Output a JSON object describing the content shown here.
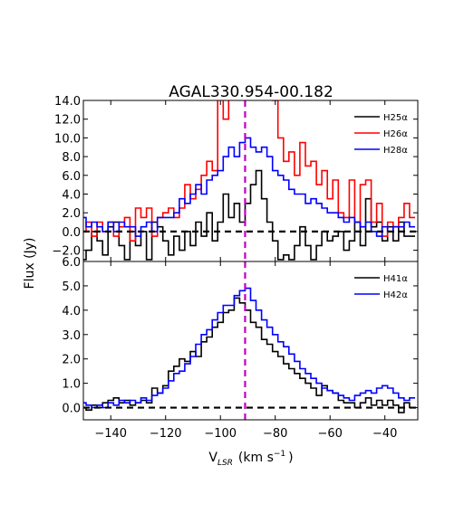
{
  "chart_data": {
    "type": "line",
    "title": "AGAL330.954-00.182",
    "xlabel_main": "V",
    "xlabel_sub": "LSR",
    "xlabel_unit": "(km s",
    "xlabel_exp": "−1",
    "xlabel_close": ")",
    "ylabel": "Flux (Jy)",
    "xlim": [
      -150,
      -28
    ],
    "x_ticks": [
      -140,
      -120,
      -100,
      -80,
      -60,
      -40
    ],
    "x_tick_labels": [
      "−140",
      "−120",
      "−100",
      "−80",
      "−60",
      "−40"
    ],
    "vline_x": -91,
    "colors": {
      "black": "#000000",
      "red": "#ff0000",
      "blue": "#0000ff",
      "vline": "#bf00bf"
    },
    "panels": [
      {
        "ylim": [
          -3.2,
          14.0
        ],
        "y_ticks": [
          -2,
          0,
          2,
          4,
          6,
          8,
          10,
          12,
          14
        ],
        "y_tick_labels": [
          "−2.0",
          "0.0",
          "2.0",
          "4.0",
          "6.0",
          "8.0",
          "10.0",
          "12.0",
          "14.0"
        ],
        "series": [
          {
            "name": "H25α",
            "color": "black",
            "x": [
              -150,
              -148,
              -146,
              -144,
              -142,
              -140,
              -138,
              -136,
              -134,
              -132,
              -130,
              -128,
              -126,
              -124,
              -122,
              -120,
              -118,
              -116,
              -114,
              -112,
              -110,
              -108,
              -106,
              -104,
              -102,
              -100,
              -98,
              -96,
              -94,
              -92,
              -90,
              -88,
              -86,
              -84,
              -82,
              -80,
              -78,
              -76,
              -74,
              -72,
              -70,
              -68,
              -66,
              -64,
              -62,
              -60,
              -58,
              -56,
              -54,
              -52,
              -50,
              -48,
              -46,
              -44,
              -42,
              -40,
              -38,
              -36,
              -34,
              -32,
              -30
            ],
            "y": [
              -3.0,
              -2.0,
              0.0,
              -1.0,
              -2.5,
              0.5,
              1.0,
              -1.5,
              -3.0,
              0.0,
              -1.5,
              0.0,
              -3.0,
              1.0,
              0.5,
              -1.0,
              -2.5,
              -0.5,
              -2.0,
              0.0,
              -1.5,
              1.0,
              -0.5,
              2.0,
              -1.0,
              1.0,
              4.0,
              1.5,
              3.0,
              1.0,
              3.0,
              5.0,
              6.5,
              3.5,
              1.0,
              -1.0,
              -3.0,
              -2.5,
              -3.0,
              -1.5,
              0.5,
              -1.5,
              -3.0,
              -1.5,
              0.0,
              -1.0,
              -0.5,
              0.0,
              -2.0,
              -1.0,
              1.0,
              -1.5,
              3.5,
              0.5,
              1.0,
              -1.0,
              0.5,
              -1.0,
              1.0,
              -0.5,
              -0.5
            ]
          },
          {
            "name": "H26α",
            "color": "red",
            "x": [
              -150,
              -148,
              -146,
              -144,
              -142,
              -140,
              -138,
              -136,
              -134,
              -132,
              -130,
              -128,
              -126,
              -124,
              -122,
              -120,
              -118,
              -116,
              -114,
              -112,
              -110,
              -108,
              -106,
              -104,
              -102,
              -100,
              -98,
              -96,
              -94,
              -92,
              -90,
              -88,
              -86,
              -84,
              -82,
              -80,
              -78,
              -76,
              -74,
              -72,
              -70,
              -68,
              -66,
              -64,
              -62,
              -60,
              -58,
              -56,
              -54,
              -52,
              -50,
              -48,
              -46,
              -44,
              -42,
              -40,
              -38,
              -36,
              -34,
              -32,
              -30
            ],
            "y": [
              0.0,
              1.0,
              -0.5,
              1.0,
              0.0,
              1.0,
              -0.5,
              0.5,
              1.5,
              -1.0,
              2.5,
              1.5,
              2.5,
              -0.5,
              1.5,
              2.0,
              2.5,
              1.5,
              2.5,
              5.0,
              3.5,
              4.5,
              6.0,
              7.5,
              6.5,
              14.5,
              12.0,
              14.5,
              14.5,
              14.5,
              14.5,
              14.5,
              14.5,
              14.5,
              14.5,
              14.0,
              10.0,
              7.5,
              8.5,
              6.0,
              9.5,
              7.0,
              7.5,
              5.0,
              6.5,
              3.5,
              5.5,
              2.0,
              1.5,
              5.5,
              1.0,
              5.0,
              5.5,
              1.0,
              3.0,
              -0.5,
              1.0,
              0.5,
              1.5,
              3.0,
              1.5
            ]
          },
          {
            "name": "H28α",
            "color": "blue",
            "x": [
              -150,
              -148,
              -146,
              -144,
              -142,
              -140,
              -138,
              -136,
              -134,
              -132,
              -130,
              -128,
              -126,
              -124,
              -122,
              -120,
              -118,
              -116,
              -114,
              -112,
              -110,
              -108,
              -106,
              -104,
              -102,
              -100,
              -98,
              -96,
              -94,
              -92,
              -90,
              -88,
              -86,
              -84,
              -82,
              -80,
              -78,
              -76,
              -74,
              -72,
              -70,
              -68,
              -66,
              -64,
              -62,
              -60,
              -58,
              -56,
              -54,
              -52,
              -50,
              -48,
              -46,
              -44,
              -42,
              -40,
              -38,
              -36,
              -34,
              -32,
              -30
            ],
            "y": [
              1.5,
              0.5,
              1.0,
              0.5,
              0.0,
              1.0,
              0.0,
              1.0,
              0.5,
              0.5,
              -0.5,
              0.5,
              1.0,
              0.0,
              1.5,
              1.5,
              1.5,
              2.0,
              3.5,
              3.0,
              4.0,
              5.0,
              4.0,
              5.5,
              6.0,
              6.5,
              8.0,
              9.0,
              8.0,
              9.5,
              10.0,
              9.0,
              8.5,
              9.0,
              8.0,
              6.5,
              6.0,
              5.5,
              4.5,
              4.0,
              4.0,
              3.0,
              3.5,
              3.0,
              2.5,
              2.0,
              2.0,
              1.5,
              1.0,
              1.5,
              1.0,
              0.5,
              1.0,
              0.0,
              -0.5,
              0.5,
              0.0,
              0.5,
              0.5,
              1.0,
              0.5
            ]
          }
        ]
      },
      {
        "ylim": [
          -0.5,
          6.0
        ],
        "y_ticks": [
          0,
          1,
          2,
          3,
          4,
          5,
          6
        ],
        "y_tick_labels": [
          "0.0",
          "1.0",
          "2.0",
          "3.0",
          "4.0",
          "5.0",
          "6.0"
        ],
        "series": [
          {
            "name": "H41α",
            "color": "black",
            "x": [
              -150,
              -148,
              -146,
              -144,
              -142,
              -140,
              -138,
              -136,
              -134,
              -132,
              -130,
              -128,
              -126,
              -124,
              -122,
              -120,
              -118,
              -116,
              -114,
              -112,
              -110,
              -108,
              -106,
              -104,
              -102,
              -100,
              -98,
              -96,
              -94,
              -92,
              -90,
              -88,
              -86,
              -84,
              -82,
              -80,
              -78,
              -76,
              -74,
              -72,
              -70,
              -68,
              -66,
              -64,
              -62,
              -60,
              -58,
              -56,
              -54,
              -52,
              -50,
              -48,
              -46,
              -44,
              -42,
              -40,
              -38,
              -36,
              -34,
              -32,
              -30
            ],
            "y": [
              0.0,
              -0.1,
              0.1,
              0.0,
              0.2,
              0.3,
              0.4,
              0.2,
              0.3,
              0.1,
              0.2,
              0.3,
              0.2,
              0.8,
              0.6,
              0.9,
              1.5,
              1.7,
              2.0,
              1.9,
              2.3,
              2.1,
              2.7,
              2.9,
              3.3,
              3.5,
              3.9,
              4.0,
              4.5,
              4.3,
              4.0,
              3.5,
              3.3,
              2.8,
              2.6,
              2.3,
              2.1,
              1.8,
              1.6,
              1.4,
              1.2,
              1.0,
              0.8,
              0.5,
              0.9,
              0.7,
              0.6,
              0.3,
              0.2,
              0.2,
              0.0,
              0.2,
              0.4,
              0.1,
              0.3,
              0.1,
              0.3,
              0.1,
              -0.2,
              0.2,
              0.0
            ]
          },
          {
            "name": "H42α",
            "color": "blue",
            "x": [
              -150,
              -148,
              -146,
              -144,
              -142,
              -140,
              -138,
              -136,
              -134,
              -132,
              -130,
              -128,
              -126,
              -124,
              -122,
              -120,
              -118,
              -116,
              -114,
              -112,
              -110,
              -108,
              -106,
              -104,
              -102,
              -100,
              -98,
              -96,
              -94,
              -92,
              -90,
              -88,
              -86,
              -84,
              -82,
              -80,
              -78,
              -76,
              -74,
              -72,
              -70,
              -68,
              -66,
              -64,
              -62,
              -60,
              -58,
              -56,
              -54,
              -52,
              -50,
              -48,
              -46,
              -44,
              -42,
              -40,
              -38,
              -36,
              -34,
              -32,
              -30
            ],
            "y": [
              0.2,
              0.1,
              0.0,
              0.1,
              0.0,
              0.2,
              0.1,
              0.3,
              0.2,
              0.3,
              0.2,
              0.4,
              0.3,
              0.5,
              0.6,
              0.8,
              1.1,
              1.4,
              1.5,
              1.8,
              2.1,
              2.6,
              3.0,
              3.2,
              3.6,
              3.9,
              4.2,
              4.2,
              4.6,
              4.8,
              4.9,
              4.4,
              4.0,
              3.6,
              3.3,
              3.0,
              2.7,
              2.5,
              2.2,
              1.9,
              1.6,
              1.4,
              1.2,
              1.0,
              0.8,
              0.7,
              0.6,
              0.5,
              0.4,
              0.3,
              0.5,
              0.6,
              0.7,
              0.6,
              0.8,
              0.9,
              0.8,
              0.6,
              0.4,
              0.3,
              0.4
            ]
          }
        ]
      }
    ]
  }
}
